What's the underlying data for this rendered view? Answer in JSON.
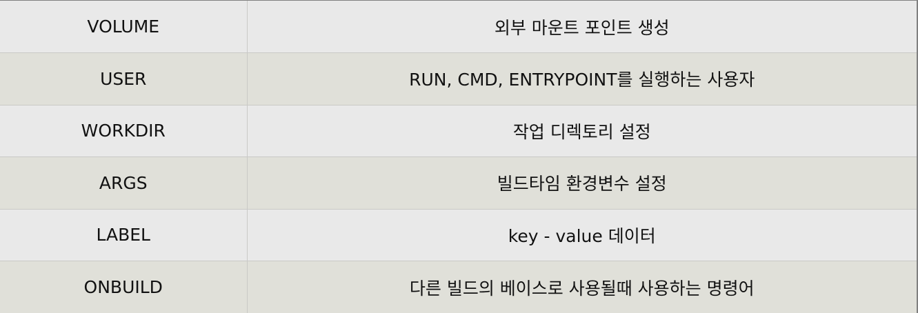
{
  "rows": [
    {
      "command": "VOLUME",
      "description": "외부 마운트 포인트 생성",
      "shade": "light"
    },
    {
      "command": "USER",
      "description": "RUN, CMD, ENTRYPOINT를 실행하는 사용자",
      "shade": "dark"
    },
    {
      "command": "WORKDIR",
      "description": "작업 디렉토리 설정",
      "shade": "light"
    },
    {
      "command": "ARGS",
      "description": "빌드타임 환경변수 설정",
      "shade": "dark"
    },
    {
      "command": "LABEL",
      "description": "key - value 데이터",
      "shade": "light"
    },
    {
      "command": "ONBUILD",
      "description": "다른 빌드의 베이스로 사용될때 사용하는 명령어",
      "shade": "dark"
    }
  ],
  "colors": {
    "row_light": "#e9e9e9",
    "row_dark": "#e0e0d9",
    "grid_line": "#c9c9c6",
    "outer_border": "#7f7f7f",
    "text": "#111111"
  }
}
